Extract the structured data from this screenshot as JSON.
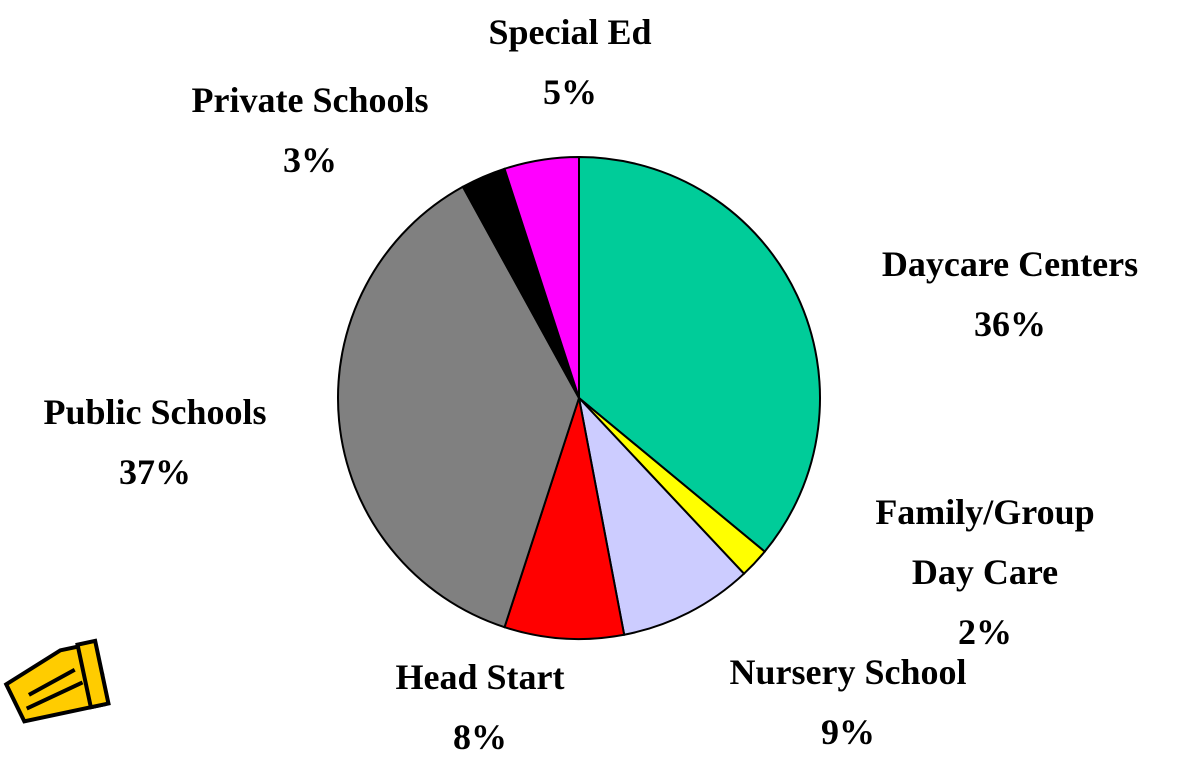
{
  "chart_data": {
    "type": "pie",
    "categories": [
      "Daycare Centers",
      "Family/Group Day Care",
      "Nursery School",
      "Head Start",
      "Public Schools",
      "Private Schools",
      "Special Ed"
    ],
    "values": [
      36,
      2,
      9,
      8,
      37,
      3,
      5
    ],
    "value_labels": [
      "36%",
      "2%",
      "9%",
      "8%",
      "37%",
      "3%",
      "5%"
    ],
    "colors": [
      "#00cc99",
      "#ffff00",
      "#ccccff",
      "#ff0000",
      "#808080",
      "#000000",
      "#ff00ff"
    ]
  }
}
